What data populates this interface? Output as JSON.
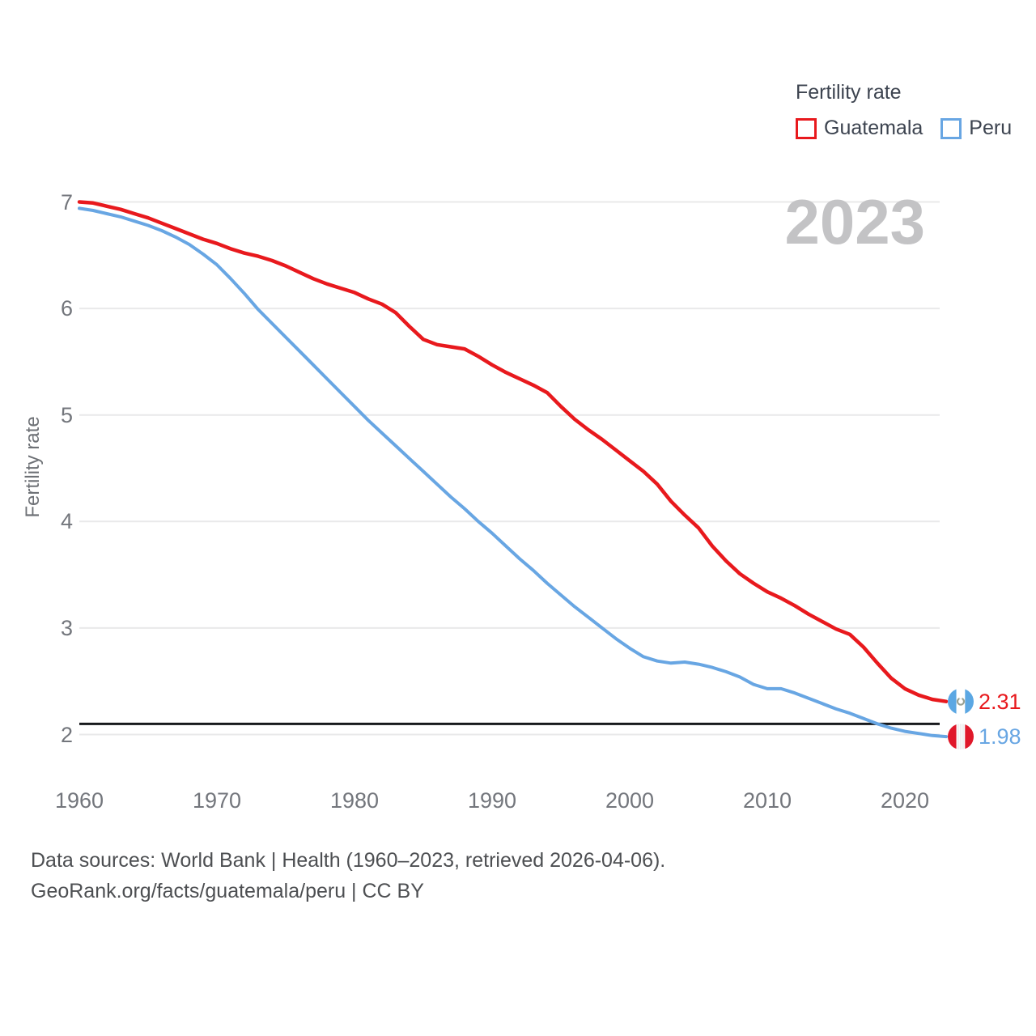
{
  "watermark": "2023",
  "legend": {
    "title": "Fertility rate",
    "items": [
      {
        "label": "Guatemala",
        "color": "#e8191d"
      },
      {
        "label": "Peru",
        "color": "#68a6e3"
      }
    ]
  },
  "y_axis": {
    "title": "Fertility rate",
    "ticks": [
      7,
      6,
      5,
      4,
      3,
      2
    ]
  },
  "x_axis": {
    "ticks": [
      1960,
      1970,
      1980,
      1990,
      2000,
      2010,
      2020
    ]
  },
  "footer": {
    "line1": "Data sources: World Bank | Health (1960–2023, retrieved 2026-04-06).",
    "line2": "GeoRank.org/facts/guatemala/peru | CC BY"
  },
  "chart_data": {
    "type": "line",
    "title": "Fertility rate",
    "xlabel": "",
    "ylabel": "Fertility rate",
    "xlim": [
      1960,
      2023
    ],
    "ylim": [
      1.9,
      7.0
    ],
    "grid": true,
    "legend_position": "top-right",
    "reference_line": {
      "value": 2.1,
      "color": "#17191c"
    },
    "x": [
      1960,
      1961,
      1962,
      1963,
      1964,
      1965,
      1966,
      1967,
      1968,
      1969,
      1970,
      1971,
      1972,
      1973,
      1974,
      1975,
      1976,
      1977,
      1978,
      1979,
      1980,
      1981,
      1982,
      1983,
      1984,
      1985,
      1986,
      1987,
      1988,
      1989,
      1990,
      1991,
      1992,
      1993,
      1994,
      1995,
      1996,
      1997,
      1998,
      1999,
      2000,
      2001,
      2002,
      2003,
      2004,
      2005,
      2006,
      2007,
      2008,
      2009,
      2010,
      2011,
      2012,
      2013,
      2014,
      2015,
      2016,
      2017,
      2018,
      2019,
      2020,
      2021,
      2022,
      2023
    ],
    "series": [
      {
        "name": "Guatemala",
        "color": "#e8191d",
        "end_label": "2.31",
        "end_value": 2.31,
        "flag": "guatemala",
        "flag_colors": {
          "band": "#5ba7e3",
          "center": "#ffffff",
          "emblem": "#98a091"
        },
        "values": [
          7.0,
          6.99,
          6.96,
          6.93,
          6.89,
          6.85,
          6.8,
          6.75,
          6.7,
          6.65,
          6.61,
          6.56,
          6.52,
          6.49,
          6.45,
          6.4,
          6.34,
          6.28,
          6.23,
          6.19,
          6.15,
          6.09,
          6.04,
          5.96,
          5.83,
          5.71,
          5.66,
          5.64,
          5.62,
          5.55,
          5.47,
          5.4,
          5.34,
          5.28,
          5.21,
          5.08,
          4.96,
          4.86,
          4.77,
          4.67,
          4.57,
          4.47,
          4.35,
          4.19,
          4.06,
          3.94,
          3.77,
          3.63,
          3.51,
          3.42,
          3.34,
          3.28,
          3.21,
          3.13,
          3.06,
          2.99,
          2.94,
          2.82,
          2.67,
          2.53,
          2.43,
          2.37,
          2.33,
          2.31
        ]
      },
      {
        "name": "Peru",
        "color": "#68a6e3",
        "end_label": "1.98",
        "end_value": 1.98,
        "flag": "peru",
        "flag_colors": {
          "band": "#e0182a",
          "center": "#fafafa",
          "emblem": "#d8d8d8"
        },
        "values": [
          6.94,
          6.92,
          6.89,
          6.86,
          6.82,
          6.78,
          6.73,
          6.67,
          6.6,
          6.51,
          6.41,
          6.28,
          6.14,
          5.99,
          5.86,
          5.73,
          5.6,
          5.47,
          5.34,
          5.21,
          5.08,
          4.95,
          4.83,
          4.71,
          4.59,
          4.47,
          4.35,
          4.23,
          4.12,
          4.0,
          3.89,
          3.77,
          3.65,
          3.54,
          3.42,
          3.31,
          3.2,
          3.1,
          3.0,
          2.9,
          2.81,
          2.73,
          2.69,
          2.67,
          2.68,
          2.66,
          2.63,
          2.59,
          2.54,
          2.47,
          2.43,
          2.43,
          2.39,
          2.34,
          2.29,
          2.24,
          2.2,
          2.15,
          2.1,
          2.06,
          2.03,
          2.01,
          1.99,
          1.98
        ]
      }
    ],
    "style": {
      "grid_color": "#e9e9ea",
      "tick_color": "#73767c",
      "line_widths": [
        4.5,
        4
      ]
    }
  }
}
